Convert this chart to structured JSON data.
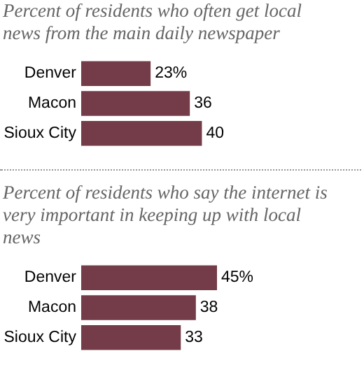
{
  "chart_data": [
    {
      "type": "bar",
      "orientation": "horizontal",
      "title": "Percent of residents who often get local news from the main daily newspaper",
      "categories": [
        "Denver",
        "Macon",
        "Sioux City"
      ],
      "values": [
        23,
        36,
        40
      ],
      "value_labels": [
        "23%",
        "36",
        "40"
      ],
      "color": "#733c48"
    },
    {
      "type": "bar",
      "orientation": "horizontal",
      "title": "Percent of residents who say the internet is very important in keeping up with local news",
      "categories": [
        "Denver",
        "Macon",
        "Sioux City"
      ],
      "values": [
        45,
        38,
        33
      ],
      "value_labels": [
        "45%",
        "38",
        "33"
      ],
      "color": "#733c48"
    }
  ]
}
